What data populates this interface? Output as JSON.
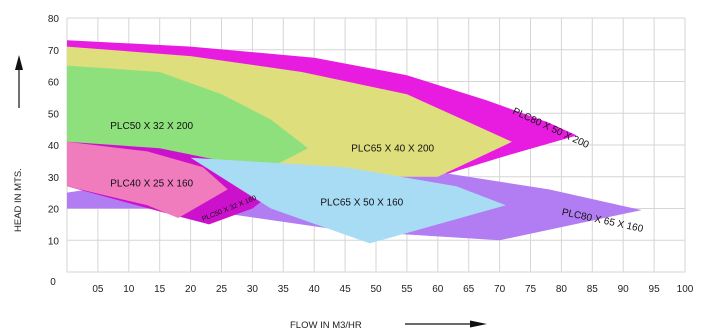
{
  "chart_data": {
    "type": "area",
    "title": "",
    "xlabel": "FLOW IN M3/HR",
    "ylabel": "HEAD IN MTS.",
    "xlim": [
      0,
      100
    ],
    "ylim": [
      0,
      80
    ],
    "grid": true,
    "x_ticks": [
      0,
      5,
      10,
      15,
      20,
      25,
      30,
      35,
      40,
      45,
      50,
      55,
      60,
      65,
      70,
      75,
      80,
      85,
      90,
      95,
      100
    ],
    "x_tick_labels": [
      "0",
      "05",
      "10",
      "15",
      "20",
      "25",
      "30",
      "35",
      "40",
      "45",
      "50",
      "55",
      "60",
      "65",
      "70",
      "75",
      "80",
      "85",
      "90",
      "95",
      "100"
    ],
    "y_ticks": [
      0,
      10,
      20,
      30,
      40,
      50,
      60,
      70,
      80
    ],
    "y_tick_labels": [
      "0",
      "10",
      "20",
      "30",
      "40",
      "50",
      "60",
      "70",
      "80"
    ],
    "regions": [
      {
        "name": "PLC80 X 50 X 200",
        "color": "#e81ce0",
        "polygon": [
          [
            0,
            73
          ],
          [
            20,
            71
          ],
          [
            40,
            67.5
          ],
          [
            55,
            62
          ],
          [
            68,
            54
          ],
          [
            78,
            47
          ],
          [
            82.5,
            43
          ],
          [
            70,
            36
          ],
          [
            60,
            30
          ],
          [
            50,
            37
          ],
          [
            0,
            40
          ]
        ],
        "label_at": [
          72,
          50
        ],
        "label_rotation": 25
      },
      {
        "name": "PLC80 X 65 X 160",
        "color": "#b27df2",
        "polygon": [
          [
            0,
            25
          ],
          [
            35,
            35
          ],
          [
            60,
            31.5
          ],
          [
            78,
            26
          ],
          [
            93,
            19.5
          ],
          [
            70,
            10
          ],
          [
            45,
            13
          ],
          [
            20,
            20
          ],
          [
            0,
            20
          ]
        ],
        "label_at": [
          80,
          18
        ],
        "label_rotation": 12
      },
      {
        "name": "PLC65 X 40 X 200",
        "color": "#dede7c",
        "polygon": [
          [
            0,
            71
          ],
          [
            20,
            68
          ],
          [
            38,
            63
          ],
          [
            55,
            56
          ],
          [
            72,
            41
          ],
          [
            60,
            30
          ],
          [
            40,
            30
          ],
          [
            0,
            40
          ]
        ],
        "label_at": [
          46,
          38
        ],
        "label_rotation": 0
      },
      {
        "name": "PLC50 X 32 X 200",
        "color": "#8de07c",
        "polygon": [
          [
            0,
            65
          ],
          [
            15,
            63
          ],
          [
            25,
            56
          ],
          [
            33,
            48
          ],
          [
            39,
            39
          ],
          [
            34,
            34
          ],
          [
            15,
            36
          ],
          [
            0,
            40
          ]
        ],
        "label_at": [
          7,
          45
        ],
        "label_rotation": 0
      },
      {
        "name": "PLC50 X 32 X 160",
        "color": "#cc11cc",
        "polygon": [
          [
            0,
            41
          ],
          [
            15,
            39
          ],
          [
            25,
            35
          ],
          [
            34,
            26
          ],
          [
            30,
            20
          ],
          [
            23,
            15
          ],
          [
            17,
            18
          ],
          [
            0,
            27
          ]
        ],
        "label_at": [
          22,
          16
        ],
        "label_rotation": 22
      },
      {
        "name": "PLC40 X 25 X 160",
        "color": "#f07bbd",
        "polygon": [
          [
            0,
            41
          ],
          [
            13,
            38
          ],
          [
            22,
            33
          ],
          [
            26,
            26
          ],
          [
            18,
            17
          ],
          [
            13,
            21
          ],
          [
            0,
            27
          ]
        ],
        "label_at": [
          7,
          27
        ],
        "label_rotation": 0
      },
      {
        "name": "PLC65 X 50 X 160",
        "color": "#a8dcf5",
        "polygon": [
          [
            20,
            36
          ],
          [
            45,
            33
          ],
          [
            63,
            27
          ],
          [
            71,
            21
          ],
          [
            49,
            9
          ],
          [
            33,
            20
          ]
        ],
        "label_at": [
          41,
          21
        ],
        "label_rotation": 0
      }
    ]
  }
}
